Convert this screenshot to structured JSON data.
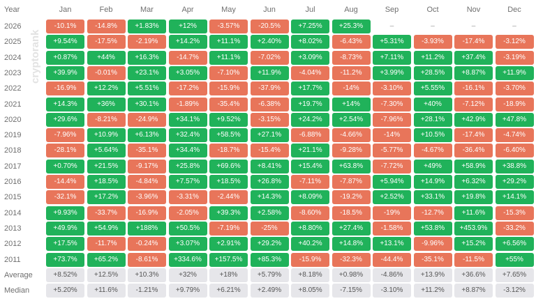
{
  "header": {
    "year_label": "Year",
    "months": [
      "Jan",
      "Feb",
      "Mar",
      "Apr",
      "May",
      "Jun",
      "Jul",
      "Aug",
      "Sep",
      "Oct",
      "Nov",
      "Dec"
    ]
  },
  "watermark": "cryptorank",
  "colors": {
    "positive": "#20b25a",
    "negative": "#e8755a",
    "summary": "#e6e6ea"
  },
  "chart_data": {
    "type": "table",
    "columns": [
      "Jan",
      "Feb",
      "Mar",
      "Apr",
      "May",
      "Jun",
      "Jul",
      "Aug",
      "Sep",
      "Oct",
      "Nov",
      "Dec"
    ],
    "rows": [
      {
        "label": "2026",
        "cells": [
          "-10.1%",
          "-14.8%",
          "+1.83%",
          "+12%",
          "-3.57%",
          "-20.5%",
          "+7.25%",
          "+25.3%",
          "–",
          "–",
          "–",
          "–"
        ]
      },
      {
        "label": "2025",
        "cells": [
          "+9.54%",
          "-17.5%",
          "-2.19%",
          "+14.2%",
          "+11.1%",
          "+2.40%",
          "+8.02%",
          "-6.43%",
          "+5.31%",
          "-3.93%",
          "-17.4%",
          "-3.12%"
        ]
      },
      {
        "label": "2024",
        "cells": [
          "+0.87%",
          "+44%",
          "+16.3%",
          "-14.7%",
          "+11.1%",
          "-7.02%",
          "+3.09%",
          "-8.73%",
          "+7.11%",
          "+11.2%",
          "+37.4%",
          "-3.19%"
        ]
      },
      {
        "label": "2023",
        "cells": [
          "+39.9%",
          "-0.01%",
          "+23.1%",
          "+3.05%",
          "-7.10%",
          "+11.9%",
          "-4.04%",
          "-11.2%",
          "+3.99%",
          "+28.5%",
          "+8.87%",
          "+11.9%"
        ]
      },
      {
        "label": "2022",
        "cells": [
          "-16.9%",
          "+12.2%",
          "+5.51%",
          "-17.2%",
          "-15.9%",
          "-37.9%",
          "+17.7%",
          "-14%",
          "-3.10%",
          "+5.55%",
          "-16.1%",
          "-3.70%"
        ]
      },
      {
        "label": "2021",
        "cells": [
          "+14.3%",
          "+36%",
          "+30.1%",
          "-1.89%",
          "-35.4%",
          "-6.38%",
          "+19.7%",
          "+14%",
          "-7.30%",
          "+40%",
          "-7.12%",
          "-18.9%"
        ]
      },
      {
        "label": "2020",
        "cells": [
          "+29.6%",
          "-8.21%",
          "-24.9%",
          "+34.1%",
          "+9.52%",
          "-3.15%",
          "+24.2%",
          "+2.54%",
          "-7.96%",
          "+28.1%",
          "+42.9%",
          "+47.8%"
        ]
      },
      {
        "label": "2019",
        "cells": [
          "-7.96%",
          "+10.9%",
          "+6.13%",
          "+32.4%",
          "+58.5%",
          "+27.1%",
          "-6.88%",
          "-4.66%",
          "-14%",
          "+10.5%",
          "-17.4%",
          "-4.74%"
        ]
      },
      {
        "label": "2018",
        "cells": [
          "-28.1%",
          "+5.64%",
          "-35.1%",
          "+34.4%",
          "-18.7%",
          "-15.4%",
          "+21.1%",
          "-9.28%",
          "-5.77%",
          "-4.67%",
          "-36.4%",
          "-6.40%"
        ]
      },
      {
        "label": "2017",
        "cells": [
          "+0.70%",
          "+21.5%",
          "-9.17%",
          "+25.8%",
          "+69.6%",
          "+8.41%",
          "+15.4%",
          "+63.8%",
          "-7.72%",
          "+49%",
          "+58.9%",
          "+38.8%"
        ]
      },
      {
        "label": "2016",
        "cells": [
          "-14.4%",
          "+18.5%",
          "-4.84%",
          "+7.57%",
          "+18.5%",
          "+26.8%",
          "-7.11%",
          "-7.87%",
          "+5.94%",
          "+14.9%",
          "+6.32%",
          "+29.2%"
        ]
      },
      {
        "label": "2015",
        "cells": [
          "-32.1%",
          "+17.2%",
          "-3.96%",
          "-3.31%",
          "-2.44%",
          "+14.3%",
          "+8.09%",
          "-19.2%",
          "+2.52%",
          "+33.1%",
          "+19.8%",
          "+14.1%"
        ]
      },
      {
        "label": "2014",
        "cells": [
          "+9.93%",
          "-33.7%",
          "-16.9%",
          "-2.05%",
          "+39.3%",
          "+2.58%",
          "-8.60%",
          "-18.5%",
          "-19%",
          "-12.7%",
          "+11.6%",
          "-15.3%"
        ]
      },
      {
        "label": "2013",
        "cells": [
          "+49.9%",
          "+54.9%",
          "+188%",
          "+50.5%",
          "-7.19%",
          "-25%",
          "+8.80%",
          "+27.4%",
          "-1.58%",
          "+53.8%",
          "+453.9%",
          "-33.2%"
        ]
      },
      {
        "label": "2012",
        "cells": [
          "+17.5%",
          "-11.7%",
          "-0.24%",
          "+3.07%",
          "+2.91%",
          "+29.2%",
          "+40.2%",
          "+14.8%",
          "+13.1%",
          "-9.96%",
          "+15.2%",
          "+6.56%"
        ]
      },
      {
        "label": "2011",
        "cells": [
          "+73.7%",
          "+65.2%",
          "-8.61%",
          "+334.6%",
          "+157.5%",
          "+85.3%",
          "-15.9%",
          "-32.3%",
          "-44.4%",
          "-35.1%",
          "-11.5%",
          "+55%"
        ]
      }
    ],
    "summary": [
      {
        "label": "Average",
        "cells": [
          "+8.52%",
          "+12.5%",
          "+10.3%",
          "+32%",
          "+18%",
          "+5.79%",
          "+8.18%",
          "+0.98%",
          "-4.86%",
          "+13.9%",
          "+36.6%",
          "+7.65%"
        ]
      },
      {
        "label": "Median",
        "cells": [
          "+5.20%",
          "+11.6%",
          "-1.21%",
          "+9.79%",
          "+6.21%",
          "+2.49%",
          "+8.05%",
          "-7.15%",
          "-3.10%",
          "+11.2%",
          "+8.87%",
          "-3.12%"
        ]
      }
    ]
  }
}
